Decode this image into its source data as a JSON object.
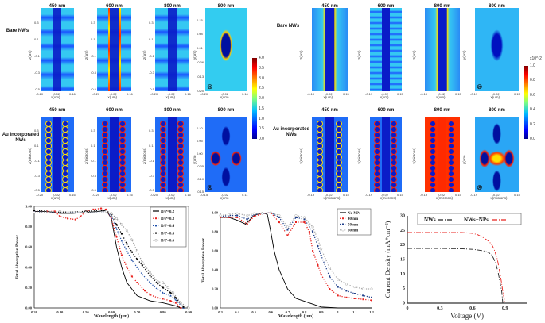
{
  "field_maps": {
    "left": {
      "rows": [
        {
          "label": "Bare NWs",
          "titles": [
            "450 nm",
            "600 nm",
            "800 nm",
            "800 nm"
          ],
          "variant": "bare-left"
        },
        {
          "label": "Au incorporated NWs",
          "titles": [
            "450 nm",
            "600 nm",
            "800 nm",
            "800 nm"
          ],
          "variant": "au-left"
        }
      ],
      "x_ticks_side": [
        "-0.20",
        "-0.02",
        "0.16"
      ],
      "x_ticks_top": [
        "-0.20",
        "-0.02",
        "0.16"
      ],
      "z_ticks": [
        "0.3",
        "0.1",
        "-0.1",
        "-0.3",
        "-0.5"
      ],
      "y_ticks_top": [
        "0.15",
        "0.08",
        "0.01",
        "-0.06",
        "-0.13",
        "-0.20"
      ],
      "y_ticks_bottom": [
        "0.10",
        "0.05",
        "0.00",
        "-0.05",
        "-0.10",
        "-0.15"
      ],
      "x_ticks_bottom_top": [
        "-0.15",
        "-0.02",
        "0.11"
      ],
      "xlabel": "x(um)",
      "zlabel_top": "z(um)",
      "zlabel_bottom": "z(microns)",
      "ylabel": "y(um)",
      "colorbar": {
        "ticks": [
          "4.0",
          "3.5",
          "3.0",
          "2.5",
          "2.0",
          "1.5",
          "1.0",
          "0.5",
          "0.0"
        ],
        "multiplier": ""
      }
    },
    "right": {
      "rows": [
        {
          "label": "Bare NWs",
          "titles": [
            "450 nm",
            "600 nm",
            "800 nm",
            "800 nm"
          ],
          "variant": "bare-right"
        },
        {
          "label": "Au incorporated NWs",
          "titles": [
            "450 nm",
            "600 nm",
            "800 nm",
            "800 nm"
          ],
          "variant": "au-right"
        }
      ],
      "x_ticks_side": [
        "-0.19",
        "-0.02",
        "0.15"
      ],
      "xlabel": "x(um)",
      "xlabel_bottom": "x(microns)",
      "zlabel_top": "z(um)",
      "zlabel_bottom": "z(microns)",
      "ylabel": "y(um)",
      "colorbar": {
        "ticks": [
          "1.0",
          "0.8",
          "0.6",
          "0.4",
          "0.2",
          "0.0"
        ],
        "multiplier": "x10^-2"
      }
    },
    "incidence_symbol": "⊗"
  },
  "chart_data": [
    {
      "type": "line",
      "xlabel": "Wavelength (µm)",
      "ylabel": "Total Absorption Power",
      "xlim": [
        0.3,
        0.9
      ],
      "ylim": [
        0,
        1
      ],
      "x_ticks": [
        "0.30",
        "0.40",
        "0.50",
        "0.60",
        "0.70",
        "0.80",
        "0.90"
      ],
      "y_ticks": [
        "0.00",
        "0.20",
        "0.40",
        "0.60",
        "0.80",
        "1.00"
      ],
      "legend": "top-right",
      "series": [
        {
          "name": "D/P=0.2",
          "color": "#000000",
          "marker": "line",
          "x": [
            0.3,
            0.35,
            0.4,
            0.45,
            0.5,
            0.55,
            0.58,
            0.6,
            0.62,
            0.64,
            0.66,
            0.7,
            0.75,
            0.8,
            0.85,
            0.87
          ],
          "y": [
            0.95,
            0.95,
            0.93,
            0.93,
            0.94,
            0.95,
            0.96,
            0.88,
            0.6,
            0.4,
            0.25,
            0.12,
            0.07,
            0.05,
            0.02,
            0
          ]
        },
        {
          "name": "D/P=0.3",
          "color": "#e8231f",
          "marker": "square",
          "x": [
            0.3,
            0.35,
            0.38,
            0.4,
            0.43,
            0.46,
            0.48,
            0.5,
            0.53,
            0.56,
            0.58,
            0.6,
            0.62,
            0.64,
            0.66,
            0.68,
            0.7,
            0.73,
            0.75,
            0.78,
            0.8,
            0.83,
            0.85,
            0.87
          ],
          "y": [
            0.95,
            0.95,
            0.95,
            0.9,
            0.88,
            0.87,
            0.9,
            0.95,
            0.97,
            0.98,
            0.97,
            0.88,
            0.7,
            0.52,
            0.4,
            0.31,
            0.25,
            0.17,
            0.13,
            0.1,
            0.09,
            0.07,
            0.05,
            0
          ]
        },
        {
          "name": "D/P=0.4",
          "color": "#1f4fa8",
          "marker": "triangle",
          "x": [
            0.3,
            0.4,
            0.5,
            0.58,
            0.6,
            0.62,
            0.64,
            0.66,
            0.68,
            0.7,
            0.72,
            0.75,
            0.78,
            0.8,
            0.83,
            0.85,
            0.88
          ],
          "y": [
            0.95,
            0.94,
            0.94,
            0.95,
            0.9,
            0.78,
            0.66,
            0.56,
            0.47,
            0.4,
            0.33,
            0.25,
            0.18,
            0.15,
            0.12,
            0.08,
            0
          ]
        },
        {
          "name": "D/P=0.5",
          "color": "#000000",
          "marker": "square",
          "x": [
            0.3,
            0.4,
            0.5,
            0.58,
            0.6,
            0.62,
            0.64,
            0.66,
            0.68,
            0.7,
            0.72,
            0.75,
            0.78,
            0.8,
            0.83,
            0.85,
            0.88
          ],
          "y": [
            0.96,
            0.94,
            0.95,
            0.96,
            0.92,
            0.82,
            0.73,
            0.63,
            0.55,
            0.48,
            0.42,
            0.32,
            0.24,
            0.2,
            0.15,
            0.1,
            0.01
          ]
        },
        {
          "name": "D/P=0.6",
          "color": "#9a9a9a",
          "marker": "circle",
          "x": [
            0.3,
            0.4,
            0.5,
            0.58,
            0.6,
            0.62,
            0.64,
            0.66,
            0.68,
            0.7,
            0.72,
            0.75,
            0.78,
            0.8,
            0.82,
            0.84,
            0.87,
            0.9
          ],
          "y": [
            0.94,
            0.95,
            0.94,
            0.95,
            0.93,
            0.88,
            0.82,
            0.76,
            0.67,
            0.56,
            0.45,
            0.35,
            0.26,
            0.25,
            0.2,
            0.15,
            0.05,
            0
          ]
        }
      ]
    },
    {
      "type": "line",
      "xlabel": "Wavelength (µm)",
      "ylabel": "Total Absorption Power",
      "xlim": [
        0.3,
        1.2
      ],
      "ylim": [
        0,
        1
      ],
      "x_ticks": [
        "0.3",
        "0.4",
        "0.5",
        "0.6",
        "0.7",
        "0.8",
        "0.9",
        "1",
        "1.1",
        "1.2"
      ],
      "y_ticks": [
        "0.00",
        "0.20",
        "0.40",
        "0.60",
        "0.80",
        "1.00"
      ],
      "legend": "top-right",
      "series": [
        {
          "name": "No NPs",
          "color": "#000000",
          "marker": "line",
          "x": [
            0.3,
            0.35,
            0.4,
            0.45,
            0.5,
            0.55,
            0.58,
            0.6,
            0.62,
            0.65,
            0.7,
            0.75,
            0.8,
            0.85,
            0.9,
            1.0,
            1.1,
            1.2
          ],
          "y": [
            0.95,
            0.95,
            0.92,
            0.88,
            0.97,
            1.0,
            0.98,
            0.8,
            0.6,
            0.4,
            0.2,
            0.1,
            0.07,
            0.04,
            0.01,
            0,
            0,
            0
          ]
        },
        {
          "name": "40 nm",
          "color": "#e8231f",
          "marker": "square",
          "x": [
            0.3,
            0.35,
            0.4,
            0.46,
            0.5,
            0.55,
            0.6,
            0.65,
            0.7,
            0.75,
            0.8,
            0.83,
            0.85,
            0.88,
            0.9,
            0.95,
            1.0,
            1.05,
            1.1,
            1.15,
            1.2
          ],
          "y": [
            0.95,
            0.95,
            0.95,
            0.88,
            0.96,
            0.99,
            1.0,
            0.9,
            0.76,
            0.9,
            0.9,
            0.8,
            0.6,
            0.45,
            0.35,
            0.2,
            0.13,
            0.11,
            0.1,
            0.09,
            0.08
          ]
        },
        {
          "name": "50 nm",
          "color": "#1f3f8a",
          "marker": "square",
          "x": [
            0.3,
            0.35,
            0.4,
            0.46,
            0.5,
            0.55,
            0.6,
            0.65,
            0.7,
            0.75,
            0.8,
            0.85,
            0.88,
            0.9,
            0.95,
            1.0,
            1.05,
            1.1,
            1.15,
            1.2
          ],
          "y": [
            0.96,
            0.97,
            0.97,
            0.93,
            0.98,
            0.99,
            1.0,
            0.95,
            0.82,
            0.95,
            0.93,
            0.8,
            0.65,
            0.55,
            0.33,
            0.22,
            0.18,
            0.15,
            0.13,
            0.11
          ]
        },
        {
          "name": "60 nm",
          "color": "#aaaaaa",
          "marker": "circle",
          "x": [
            0.3,
            0.35,
            0.4,
            0.46,
            0.5,
            0.55,
            0.6,
            0.65,
            0.7,
            0.75,
            0.8,
            0.85,
            0.88,
            0.9,
            0.95,
            1.0,
            1.05,
            1.1,
            1.15,
            1.2
          ],
          "y": [
            0.97,
            0.98,
            0.99,
            0.97,
            0.99,
            0.99,
            1.0,
            0.97,
            0.85,
            0.97,
            0.95,
            0.85,
            0.72,
            0.62,
            0.42,
            0.3,
            0.25,
            0.22,
            0.2,
            0.2
          ]
        }
      ]
    },
    {
      "type": "line",
      "xlabel": "Voltage (V)",
      "ylabel": "Current Density (mA*cm⁻²)",
      "xlim": [
        0,
        1.1
      ],
      "ylim": [
        0,
        30
      ],
      "x_ticks": [
        "0",
        "0.3",
        "0.6",
        "0.9"
      ],
      "y_ticks": [
        "0",
        "5",
        "10",
        "15",
        "20",
        "25",
        "30"
      ],
      "legend": "top",
      "series": [
        {
          "name": "NWs",
          "color": "#222222",
          "marker": "dashdot",
          "x": [
            0,
            0.3,
            0.5,
            0.6,
            0.7,
            0.75,
            0.78,
            0.8,
            0.82,
            0.84,
            0.85,
            0.86,
            0.87,
            0.88
          ],
          "y": [
            18.8,
            18.8,
            18.7,
            18.5,
            18,
            17.4,
            16.5,
            15,
            13,
            10,
            8,
            6,
            4,
            0
          ]
        },
        {
          "name": "NWs+NPs",
          "color": "#e8231f",
          "marker": "dashdot",
          "x": [
            0,
            0.3,
            0.5,
            0.6,
            0.65,
            0.7,
            0.75,
            0.78,
            0.8,
            0.83,
            0.85,
            0.86,
            0.88,
            0.9
          ],
          "y": [
            24.3,
            24.3,
            24.3,
            24,
            23.5,
            22.5,
            21.3,
            20,
            18.5,
            15,
            11,
            9,
            4,
            0
          ]
        }
      ]
    }
  ]
}
